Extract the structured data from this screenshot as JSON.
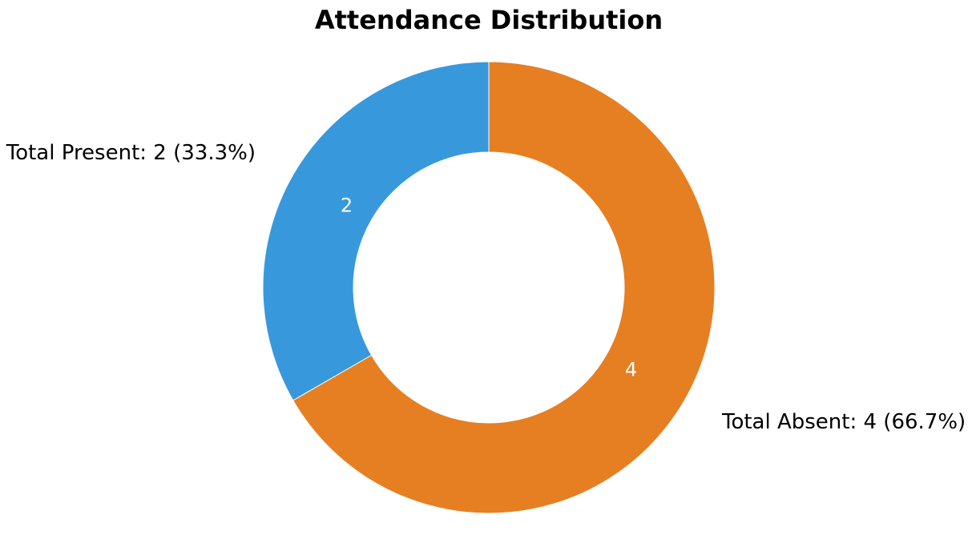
{
  "chart_data": {
    "type": "pie",
    "title": "Attendance Distribution",
    "donut": true,
    "start_angle": "top",
    "direction": "counterclockwise",
    "slices": [
      {
        "label": "Total Present",
        "value": 2,
        "percent": 33.3,
        "color": "#3799db",
        "display": "Total Present: 2 (33.3%)"
      },
      {
        "label": "Total Absent",
        "value": 4,
        "percent": 66.7,
        "color": "#e67f22",
        "display": "Total Absent: 4 (66.7%)"
      }
    ]
  }
}
